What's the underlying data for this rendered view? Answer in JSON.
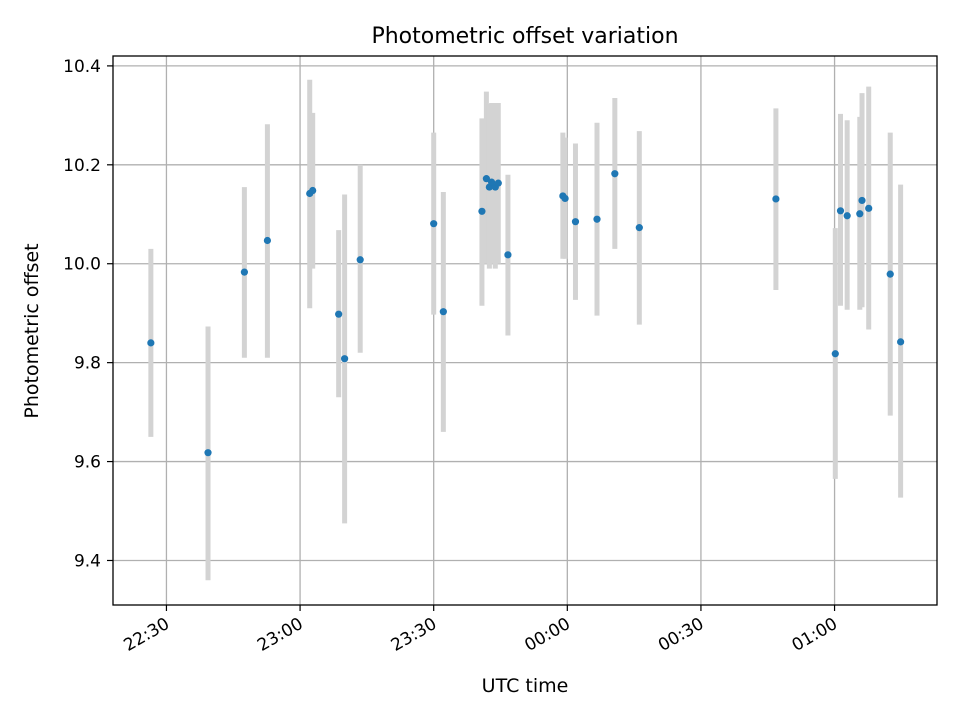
{
  "chart_data": {
    "type": "scatter",
    "title": "Photometric offset variation",
    "xlabel": "UTC time",
    "ylabel": "Photometric offset",
    "x_is_time": true,
    "xlim": [
      "22:18",
      "01:23"
    ],
    "ylim": [
      9.31,
      10.42
    ],
    "x_ticks": [
      "22:30",
      "23:00",
      "23:30",
      "00:00",
      "00:30",
      "01:00"
    ],
    "y_ticks": [
      9.4,
      9.6,
      9.8,
      10.0,
      10.2,
      10.4
    ],
    "y_tick_labels": [
      "9.4",
      "9.6",
      "9.8",
      "10.0",
      "10.2",
      "10.4"
    ],
    "grid": true,
    "colors": {
      "point": "#1f77b4",
      "errorbar": "#d3d3d3",
      "grid": "#b0b0b0",
      "axes": "#000000"
    },
    "series": [
      {
        "points": [
          {
            "x": "22:26:30",
            "y": 9.84,
            "lo": 9.65,
            "hi": 10.03
          },
          {
            "x": "22:39:20",
            "y": 9.618,
            "lo": 9.36,
            "hi": 9.873
          },
          {
            "x": "22:47:30",
            "y": 9.983,
            "lo": 9.81,
            "hi": 10.155
          },
          {
            "x": "22:52:40",
            "y": 10.047,
            "lo": 9.81,
            "hi": 10.282
          },
          {
            "x": "23:02:10",
            "y": 10.142,
            "lo": 9.91,
            "hi": 10.372
          },
          {
            "x": "23:02:50",
            "y": 10.148,
            "lo": 9.99,
            "hi": 10.305
          },
          {
            "x": "23:08:40",
            "y": 9.898,
            "lo": 9.73,
            "hi": 10.068
          },
          {
            "x": "23:10:00",
            "y": 9.808,
            "lo": 9.475,
            "hi": 10.14
          },
          {
            "x": "23:13:30",
            "y": 10.008,
            "lo": 9.82,
            "hi": 10.2
          },
          {
            "x": "23:30:00",
            "y": 10.081,
            "lo": 9.897,
            "hi": 10.265
          },
          {
            "x": "23:32:10",
            "y": 9.903,
            "lo": 9.66,
            "hi": 10.145
          },
          {
            "x": "23:40:50",
            "y": 10.106,
            "lo": 9.915,
            "hi": 10.294
          },
          {
            "x": "23:41:50",
            "y": 10.172,
            "lo": 10.0,
            "hi": 10.348
          },
          {
            "x": "23:42:30",
            "y": 10.155,
            "lo": 9.99,
            "hi": 10.323
          },
          {
            "x": "23:43:00",
            "y": 10.165,
            "lo": 10.0,
            "hi": 10.325
          },
          {
            "x": "23:43:50",
            "y": 10.155,
            "lo": 9.99,
            "hi": 10.325
          },
          {
            "x": "23:44:30",
            "y": 10.163,
            "lo": 10.0,
            "hi": 10.325
          },
          {
            "x": "23:46:40",
            "y": 10.018,
            "lo": 9.855,
            "hi": 10.18
          },
          {
            "x": "23:59:00",
            "y": 10.137,
            "lo": 10.01,
            "hi": 10.265
          },
          {
            "x": "23:59:30",
            "y": 10.132,
            "lo": 10.01,
            "hi": 10.255
          },
          {
            "x": "00:01:50",
            "y": 10.085,
            "lo": 9.927,
            "hi": 10.243
          },
          {
            "x": "00:06:40",
            "y": 10.09,
            "lo": 9.895,
            "hi": 10.285
          },
          {
            "x": "00:10:40",
            "y": 10.182,
            "lo": 10.03,
            "hi": 10.335
          },
          {
            "x": "00:16:10",
            "y": 10.073,
            "lo": 9.877,
            "hi": 10.268
          },
          {
            "x": "00:46:50",
            "y": 10.131,
            "lo": 9.947,
            "hi": 10.314
          },
          {
            "x": "01:00:10",
            "y": 9.818,
            "lo": 9.565,
            "hi": 10.072
          },
          {
            "x": "01:01:20",
            "y": 10.107,
            "lo": 9.915,
            "hi": 10.303
          },
          {
            "x": "01:02:50",
            "y": 10.097,
            "lo": 9.907,
            "hi": 10.29
          },
          {
            "x": "01:05:40",
            "y": 10.101,
            "lo": 9.907,
            "hi": 10.297
          },
          {
            "x": "01:06:10",
            "y": 10.128,
            "lo": 9.912,
            "hi": 10.345
          },
          {
            "x": "01:07:40",
            "y": 10.112,
            "lo": 9.867,
            "hi": 10.358
          },
          {
            "x": "01:12:30",
            "y": 9.979,
            "lo": 9.693,
            "hi": 10.265
          },
          {
            "x": "01:14:50",
            "y": 9.842,
            "lo": 9.527,
            "hi": 10.16
          }
        ]
      }
    ]
  }
}
